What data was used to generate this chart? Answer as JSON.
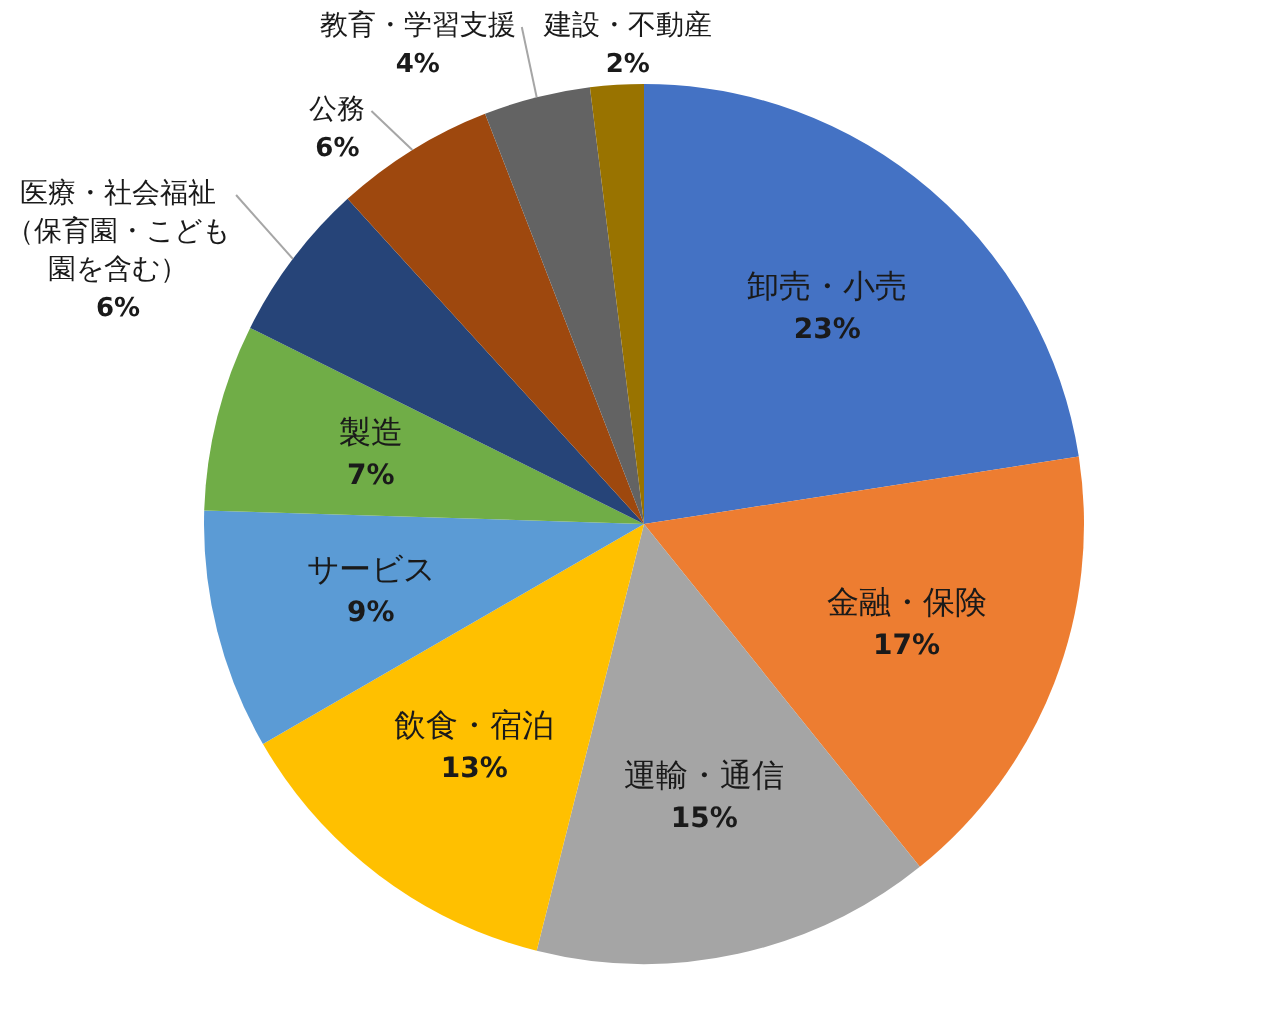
{
  "chart_data": {
    "type": "pie",
    "categories": [
      "卸売・小売",
      "金融・保険",
      "運輸・通信",
      "飲食・宿泊",
      "サービス",
      "製造",
      "医療・社会福祉（保育園・こども園を含む）",
      "公務",
      "教育・学習支援",
      "建設・不動産"
    ],
    "values": [
      23,
      17,
      15,
      13,
      9,
      7,
      6,
      6,
      4,
      2
    ],
    "value_labels": [
      "23%",
      "17%",
      "15%",
      "13%",
      "9%",
      "7%",
      "6%",
      "6%",
      "4%",
      "2%"
    ],
    "colors": [
      "#4472c4",
      "#ed7d31",
      "#a5a5a5",
      "#ffc000",
      "#5b9bd5",
      "#70ad47",
      "#264478",
      "#9e480e",
      "#636363",
      "#997300"
    ]
  }
}
